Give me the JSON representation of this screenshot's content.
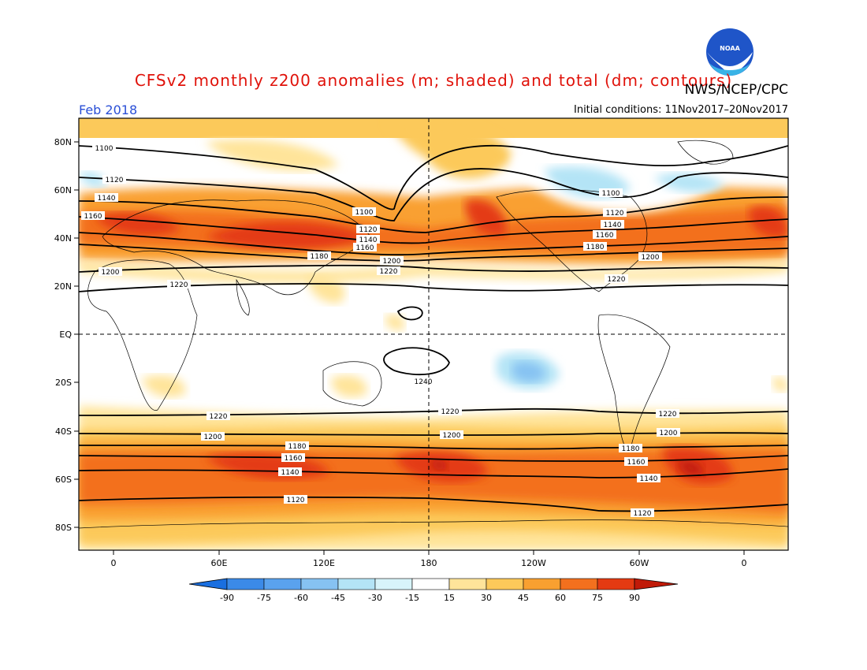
{
  "header": {
    "title": "CFSv2 monthly z200 anomalies (m; shaded) and total (dm; contours)",
    "agency": "NWS/NCEP/CPC",
    "logo_text": "NOAA",
    "target_month": "Feb 2018",
    "initial_conditions": "Initial conditions: 11Nov2017–20Nov2017"
  },
  "axes": {
    "lat_labels": [
      "80N",
      "60N",
      "40N",
      "20N",
      "EQ",
      "20S",
      "40S",
      "60S",
      "80S"
    ],
    "lon_labels": [
      "0",
      "60E",
      "120E",
      "180",
      "120W",
      "60W",
      "0"
    ]
  },
  "colorbar": {
    "ticks": [
      "-90",
      "-75",
      "-60",
      "-45",
      "-30",
      "-15",
      "15",
      "30",
      "45",
      "60",
      "75",
      "90"
    ],
    "colors": [
      "#1a6fe0",
      "#3b8ae8",
      "#5aa2ee",
      "#86c2f2",
      "#b4e4f6",
      "#ffffff",
      "#ffe49a",
      "#fcc95a",
      "#f9a030",
      "#f3701e",
      "#e43a12",
      "#c01a08"
    ]
  },
  "contour_labels": [
    {
      "text": "1100"
    },
    {
      "text": "1120"
    },
    {
      "text": "1140"
    },
    {
      "text": "1160"
    },
    {
      "text": "1180"
    },
    {
      "text": "1200"
    },
    {
      "text": "1220"
    },
    {
      "text": "1240"
    }
  ]
}
